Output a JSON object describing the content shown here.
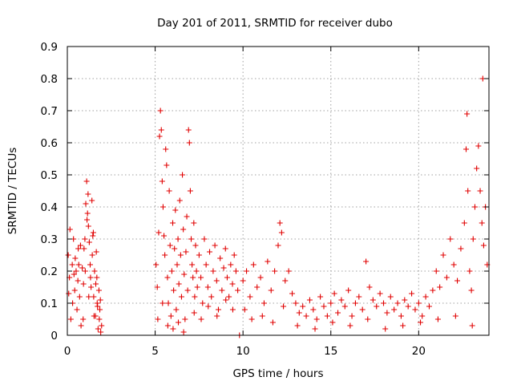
{
  "chart_data": {
    "type": "scatter",
    "title": "Day 201 of 2011, SRMTID for receiver dubo",
    "xlabel": "GPS time / hours",
    "ylabel": "SRMTID / TECUs",
    "xlim": [
      0,
      24
    ],
    "ylim": [
      0,
      0.9
    ],
    "xticks": [
      0,
      5,
      10,
      15,
      20
    ],
    "yticks": [
      0,
      0.1,
      0.2,
      0.3,
      0.4,
      0.5,
      0.6,
      0.7,
      0.8,
      0.9
    ],
    "grid": true,
    "marker": "+",
    "series_color": "#e00000",
    "segments": [
      {
        "x_start": 0.0,
        "x_end": 2.0,
        "points": [
          [
            0.05,
            0.25
          ],
          [
            0.12,
            0.18
          ],
          [
            0.2,
            0.05
          ],
          [
            0.28,
            0.22
          ],
          [
            0.35,
            0.3
          ],
          [
            0.42,
            0.14
          ],
          [
            0.5,
            0.2
          ],
          [
            0.55,
            0.08
          ],
          [
            0.62,
            0.27
          ],
          [
            0.7,
            0.12
          ],
          [
            0.78,
            0.03
          ],
          [
            0.85,
            0.21
          ],
          [
            0.92,
            0.16
          ],
          [
            1.0,
            0.3
          ],
          [
            1.05,
            0.41
          ],
          [
            1.1,
            0.48
          ],
          [
            1.15,
            0.38
          ],
          [
            1.2,
            0.34
          ],
          [
            1.25,
            0.29
          ],
          [
            1.3,
            0.22
          ],
          [
            1.35,
            0.15
          ],
          [
            1.4,
            0.42
          ],
          [
            1.45,
            0.31
          ],
          [
            1.5,
            0.12
          ],
          [
            1.55,
            0.2
          ],
          [
            1.6,
            0.06
          ],
          [
            1.65,
            0.26
          ],
          [
            1.7,
            0.1
          ],
          [
            1.75,
            0.02
          ],
          [
            1.8,
            0.14
          ],
          [
            1.85,
            0.08
          ],
          [
            1.9,
            0.01
          ],
          [
            0.15,
            0.33
          ],
          [
            0.3,
            0.1
          ],
          [
            0.45,
            0.24
          ],
          [
            0.6,
            0.17
          ],
          [
            0.75,
            0.28
          ],
          [
            0.9,
            0.05
          ],
          [
            1.02,
            0.2
          ],
          [
            1.12,
            0.36
          ],
          [
            1.22,
            0.12
          ],
          [
            1.32,
            0.18
          ],
          [
            1.42,
            0.25
          ],
          [
            1.52,
            0.06
          ],
          [
            1.62,
            0.16
          ],
          [
            1.72,
            0.09
          ],
          [
            1.82,
            0.05
          ],
          [
            1.95,
            0.03
          ],
          [
            0.08,
            0.13
          ],
          [
            0.38,
            0.19
          ],
          [
            0.65,
            0.22
          ],
          [
            0.95,
            0.27
          ],
          [
            1.18,
            0.44
          ],
          [
            1.48,
            0.32
          ],
          [
            1.68,
            0.18
          ],
          [
            1.88,
            0.11
          ]
        ]
      },
      {
        "x_start": 5.0,
        "x_end": 9.8,
        "points": [
          [
            5.05,
            0.22
          ],
          [
            5.12,
            0.15
          ],
          [
            5.2,
            0.32
          ],
          [
            5.25,
            0.62
          ],
          [
            5.3,
            0.7
          ],
          [
            5.35,
            0.64
          ],
          [
            5.4,
            0.48
          ],
          [
            5.45,
            0.4
          ],
          [
            5.5,
            0.31
          ],
          [
            5.55,
            0.25
          ],
          [
            5.6,
            0.58
          ],
          [
            5.65,
            0.53
          ],
          [
            5.7,
            0.18
          ],
          [
            5.75,
            0.1
          ],
          [
            5.8,
            0.45
          ],
          [
            5.85,
            0.28
          ],
          [
            5.9,
            0.06
          ],
          [
            5.95,
            0.2
          ],
          [
            6.0,
            0.35
          ],
          [
            6.05,
            0.14
          ],
          [
            6.1,
            0.27
          ],
          [
            6.15,
            0.39
          ],
          [
            6.2,
            0.08
          ],
          [
            6.25,
            0.22
          ],
          [
            6.3,
            0.3
          ],
          [
            6.35,
            0.16
          ],
          [
            6.4,
            0.42
          ],
          [
            6.45,
            0.25
          ],
          [
            6.5,
            0.12
          ],
          [
            6.55,
            0.5
          ],
          [
            6.6,
            0.33
          ],
          [
            6.65,
            0.19
          ],
          [
            6.7,
            0.05
          ],
          [
            6.75,
            0.26
          ],
          [
            6.8,
            0.37
          ],
          [
            6.85,
            0.14
          ],
          [
            6.9,
            0.64
          ],
          [
            6.95,
            0.6
          ],
          [
            7.0,
            0.45
          ],
          [
            7.05,
            0.3
          ],
          [
            7.1,
            0.22
          ],
          [
            7.15,
            0.18
          ],
          [
            7.2,
            0.35
          ],
          [
            7.25,
            0.12
          ],
          [
            7.3,
            0.28
          ],
          [
            7.35,
            0.2
          ],
          [
            7.4,
            0.15
          ],
          [
            7.5,
            0.25
          ],
          [
            7.6,
            0.18
          ],
          [
            7.7,
            0.1
          ],
          [
            7.8,
            0.3
          ],
          [
            7.9,
            0.22
          ],
          [
            8.0,
            0.15
          ],
          [
            8.1,
            0.26
          ],
          [
            8.2,
            0.12
          ],
          [
            8.3,
            0.2
          ],
          [
            8.4,
            0.28
          ],
          [
            8.5,
            0.17
          ],
          [
            8.6,
            0.08
          ],
          [
            8.7,
            0.24
          ],
          [
            8.8,
            0.14
          ],
          [
            8.9,
            0.21
          ],
          [
            9.0,
            0.27
          ],
          [
            9.1,
            0.18
          ],
          [
            9.2,
            0.12
          ],
          [
            9.3,
            0.22
          ],
          [
            9.4,
            0.16
          ],
          [
            9.5,
            0.25
          ],
          [
            9.6,
            0.2
          ],
          [
            9.7,
            0.14
          ],
          [
            9.8,
            0.0
          ],
          [
            5.15,
            0.05
          ],
          [
            5.42,
            0.1
          ],
          [
            5.72,
            0.03
          ],
          [
            6.02,
            0.02
          ],
          [
            6.32,
            0.04
          ],
          [
            6.62,
            0.01
          ],
          [
            7.22,
            0.07
          ],
          [
            7.62,
            0.05
          ],
          [
            8.02,
            0.09
          ],
          [
            8.52,
            0.06
          ],
          [
            9.02,
            0.11
          ],
          [
            9.42,
            0.08
          ]
        ]
      },
      {
        "x_start": 9.9,
        "x_end": 24.0,
        "points": [
          [
            10.0,
            0.17
          ],
          [
            10.2,
            0.2
          ],
          [
            10.4,
            0.12
          ],
          [
            10.6,
            0.22
          ],
          [
            10.8,
            0.15
          ],
          [
            11.0,
            0.18
          ],
          [
            11.2,
            0.1
          ],
          [
            11.4,
            0.23
          ],
          [
            11.6,
            0.14
          ],
          [
            11.8,
            0.2
          ],
          [
            12.0,
            0.28
          ],
          [
            12.1,
            0.35
          ],
          [
            12.2,
            0.32
          ],
          [
            12.4,
            0.17
          ],
          [
            12.6,
            0.2
          ],
          [
            12.8,
            0.13
          ],
          [
            13.0,
            0.1
          ],
          [
            13.2,
            0.07
          ],
          [
            13.4,
            0.09
          ],
          [
            13.6,
            0.06
          ],
          [
            13.8,
            0.11
          ],
          [
            14.0,
            0.08
          ],
          [
            14.2,
            0.05
          ],
          [
            14.4,
            0.12
          ],
          [
            14.6,
            0.09
          ],
          [
            14.8,
            0.06
          ],
          [
            15.0,
            0.1
          ],
          [
            15.2,
            0.13
          ],
          [
            15.4,
            0.07
          ],
          [
            15.6,
            0.11
          ],
          [
            15.8,
            0.09
          ],
          [
            16.0,
            0.14
          ],
          [
            16.2,
            0.06
          ],
          [
            16.4,
            0.1
          ],
          [
            16.6,
            0.12
          ],
          [
            16.8,
            0.08
          ],
          [
            17.0,
            0.23
          ],
          [
            17.2,
            0.15
          ],
          [
            17.4,
            0.11
          ],
          [
            17.6,
            0.09
          ],
          [
            17.8,
            0.13
          ],
          [
            18.0,
            0.1
          ],
          [
            18.2,
            0.07
          ],
          [
            18.4,
            0.12
          ],
          [
            18.6,
            0.08
          ],
          [
            18.8,
            0.1
          ],
          [
            19.0,
            0.06
          ],
          [
            19.2,
            0.11
          ],
          [
            19.4,
            0.09
          ],
          [
            19.6,
            0.13
          ],
          [
            19.8,
            0.08
          ],
          [
            20.0,
            0.1
          ],
          [
            20.2,
            0.06
          ],
          [
            20.4,
            0.12
          ],
          [
            20.6,
            0.09
          ],
          [
            20.8,
            0.14
          ],
          [
            21.0,
            0.2
          ],
          [
            21.2,
            0.15
          ],
          [
            21.4,
            0.25
          ],
          [
            21.6,
            0.18
          ],
          [
            21.8,
            0.3
          ],
          [
            22.0,
            0.22
          ],
          [
            22.2,
            0.17
          ],
          [
            22.4,
            0.27
          ],
          [
            22.6,
            0.35
          ],
          [
            22.7,
            0.58
          ],
          [
            22.75,
            0.69
          ],
          [
            22.8,
            0.45
          ],
          [
            22.9,
            0.2
          ],
          [
            23.0,
            0.14
          ],
          [
            23.1,
            0.3
          ],
          [
            23.2,
            0.4
          ],
          [
            23.3,
            0.52
          ],
          [
            23.4,
            0.59
          ],
          [
            23.5,
            0.45
          ],
          [
            23.6,
            0.35
          ],
          [
            23.65,
            0.8
          ],
          [
            23.7,
            0.28
          ],
          [
            23.8,
            0.4
          ],
          [
            23.9,
            0.22
          ],
          [
            10.1,
            0.08
          ],
          [
            10.5,
            0.05
          ],
          [
            11.1,
            0.06
          ],
          [
            11.7,
            0.04
          ],
          [
            12.3,
            0.09
          ],
          [
            13.1,
            0.03
          ],
          [
            14.1,
            0.02
          ],
          [
            15.1,
            0.04
          ],
          [
            16.1,
            0.03
          ],
          [
            17.1,
            0.05
          ],
          [
            18.1,
            0.02
          ],
          [
            19.1,
            0.03
          ],
          [
            20.1,
            0.04
          ],
          [
            21.1,
            0.05
          ],
          [
            22.1,
            0.06
          ],
          [
            23.05,
            0.03
          ]
        ]
      }
    ]
  }
}
